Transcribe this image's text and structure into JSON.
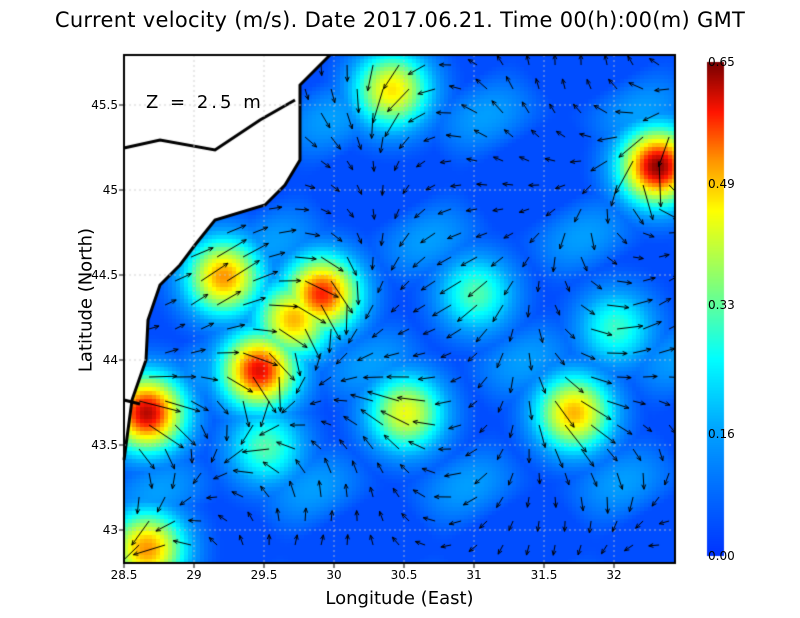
{
  "title": "Current velocity (m/s). Date 2017.06.21. Time 00(h):00(m) GMT",
  "annotation": "Z = 2.5 m",
  "chart_data": {
    "type": "heatmap",
    "xlabel": "Longitude (East)",
    "ylabel": "Latitude (North)",
    "xlim": [
      28.5,
      32.4
    ],
    "ylim": [
      42.8,
      45.8
    ],
    "xticks": [
      "28.5",
      "29",
      "29.5",
      "30",
      "30.5",
      "31",
      "31.5",
      "32"
    ],
    "yticks": [
      "43",
      "43.5",
      "44",
      "44.5",
      "45",
      "45.5"
    ],
    "grid": true,
    "colorbar": {
      "ticks": [
        "0.00",
        "0.16",
        "0.33",
        "0.49",
        "0.65"
      ],
      "range": [
        0,
        0.65
      ],
      "colormap": "jet"
    },
    "land_color": "#ffffff",
    "speed_hotspots": [
      {
        "lon": 32.3,
        "lat": 45.15,
        "speed": 0.62
      },
      {
        "lon": 29.2,
        "lat": 44.5,
        "speed": 0.5
      },
      {
        "lon": 29.9,
        "lat": 44.4,
        "speed": 0.56
      },
      {
        "lon": 29.7,
        "lat": 44.25,
        "speed": 0.48
      },
      {
        "lon": 29.45,
        "lat": 43.95,
        "speed": 0.58
      },
      {
        "lon": 28.65,
        "lat": 43.7,
        "speed": 0.6
      },
      {
        "lon": 28.65,
        "lat": 42.9,
        "speed": 0.5
      },
      {
        "lon": 31.7,
        "lat": 43.7,
        "speed": 0.48
      },
      {
        "lon": 30.4,
        "lat": 45.6,
        "speed": 0.45
      },
      {
        "lon": 30.5,
        "lat": 43.7,
        "speed": 0.42
      },
      {
        "lon": 31.0,
        "lat": 44.4,
        "speed": 0.3
      },
      {
        "lon": 29.5,
        "lat": 43.5,
        "speed": 0.3
      },
      {
        "lon": 32.0,
        "lat": 44.2,
        "speed": 0.28
      }
    ]
  }
}
